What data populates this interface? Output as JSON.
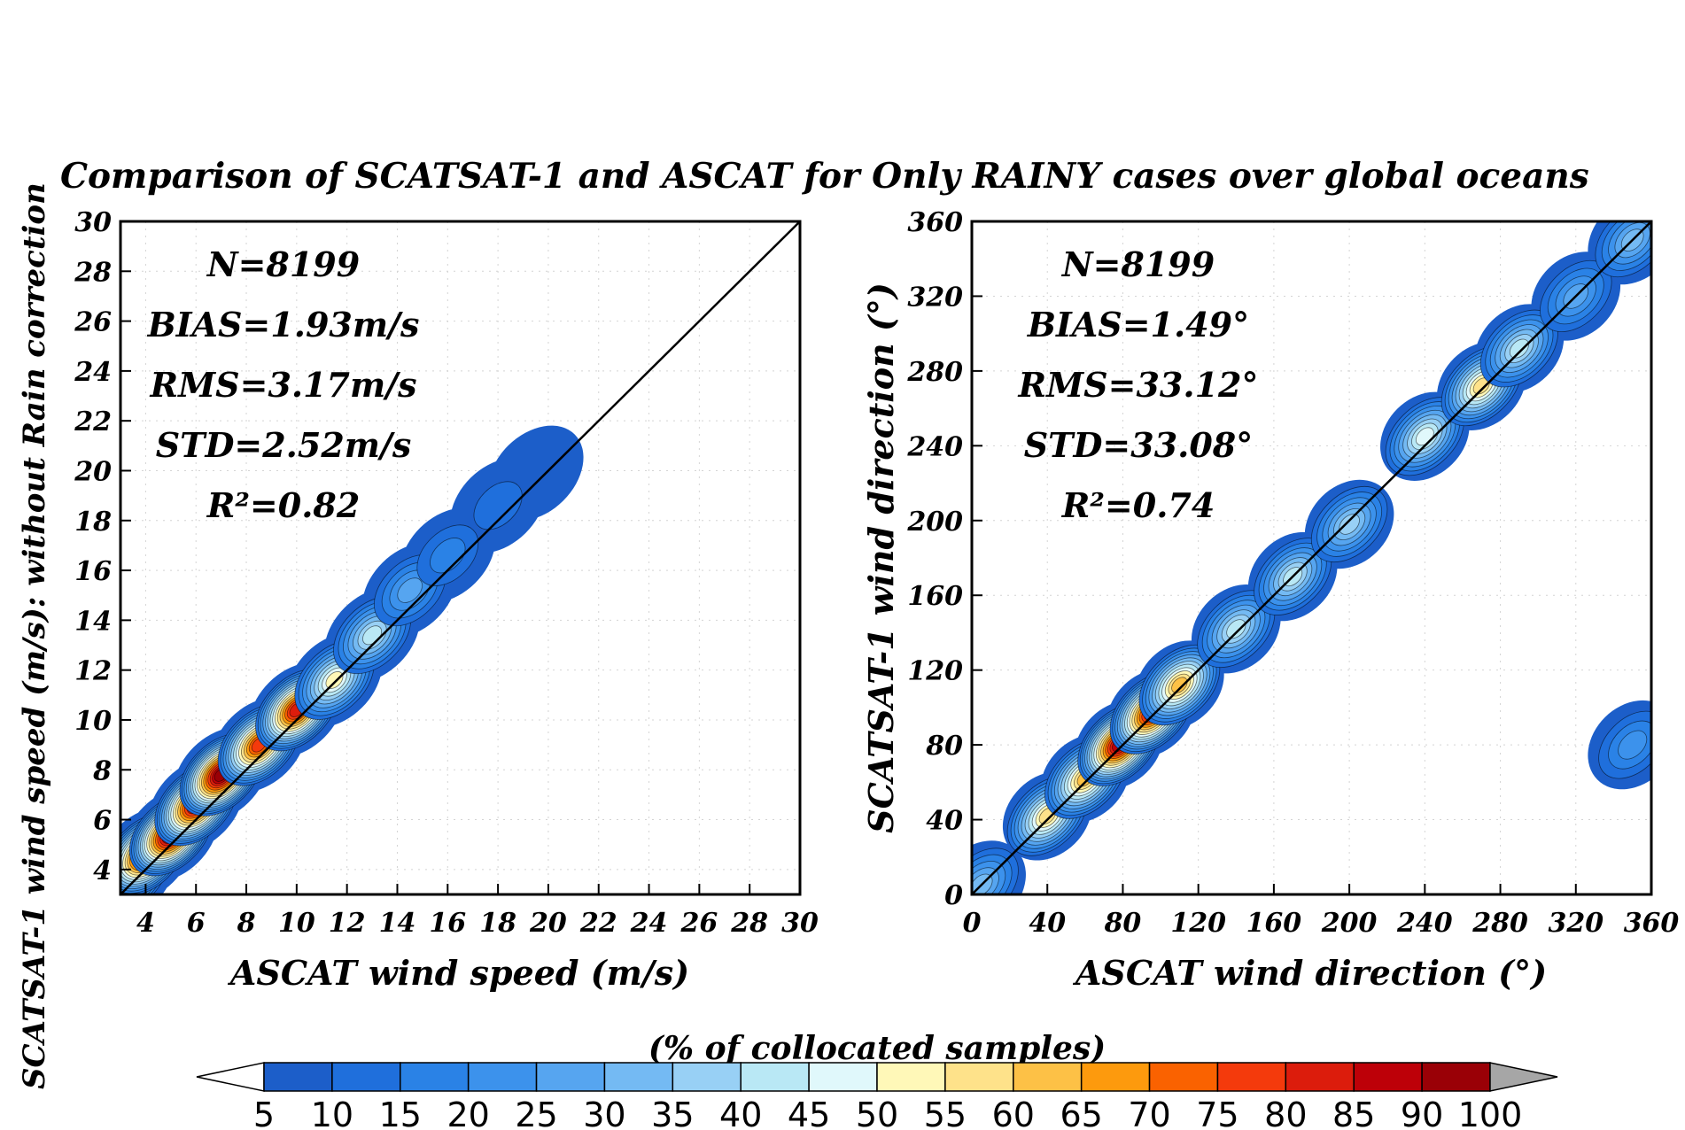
{
  "figure": {
    "title": "Comparison of SCATSAT-1 and ASCAT for Only RAINY cases over global oceans",
    "left_margin_label": "SCATSAT-1 wind speed (m/s): without Rain correction",
    "colorbar_label": "(% of collocated samples)"
  },
  "chart_data": [
    {
      "type": "heatmap",
      "subtype": "2D density contour (filled)",
      "xlabel": "ASCAT wind speed (m/s)",
      "ylabel": "",
      "xlim": [
        3,
        30
      ],
      "ylim": [
        3,
        30
      ],
      "x_ticks": [
        4,
        6,
        8,
        10,
        12,
        14,
        16,
        18,
        20,
        22,
        24,
        26,
        28,
        30
      ],
      "y_ticks": [
        4,
        6,
        8,
        10,
        12,
        14,
        16,
        18,
        20,
        22,
        24,
        26,
        28,
        30
      ],
      "grid": true,
      "reference_line": "1:1",
      "stats": [
        "N=8199",
        "BIAS=1.93m/s",
        "RMS=3.17m/s",
        "STD=2.52m/s",
        "R²=0.82"
      ],
      "density_ridge": [
        {
          "x": 3.3,
          "y": 3.8,
          "level": 75
        },
        {
          "x": 4.0,
          "y": 4.6,
          "level": 85
        },
        {
          "x": 5.0,
          "y": 5.4,
          "level": 90
        },
        {
          "x": 6.0,
          "y": 6.6,
          "level": 85
        },
        {
          "x": 7.0,
          "y": 7.8,
          "level": 90
        },
        {
          "x": 8.5,
          "y": 9.0,
          "level": 75
        },
        {
          "x": 10.0,
          "y": 10.4,
          "level": 80
        },
        {
          "x": 11.5,
          "y": 11.6,
          "level": 50
        },
        {
          "x": 13.0,
          "y": 13.4,
          "level": 40
        },
        {
          "x": 14.5,
          "y": 15.2,
          "level": 25
        },
        {
          "x": 16.0,
          "y": 16.6,
          "level": 15
        },
        {
          "x": 18.0,
          "y": 18.6,
          "level": 10
        },
        {
          "x": 19.5,
          "y": 19.9,
          "level": 5
        }
      ]
    },
    {
      "type": "heatmap",
      "subtype": "2D density contour (filled)",
      "xlabel": "ASCAT wind direction (°)",
      "ylabel": "SCATSAT-1 wind direction (°)",
      "xlim": [
        0,
        360
      ],
      "ylim": [
        0,
        360
      ],
      "x_ticks": [
        0,
        40,
        80,
        120,
        160,
        200,
        240,
        280,
        320,
        360
      ],
      "y_ticks": [
        0,
        40,
        80,
        120,
        160,
        200,
        240,
        280,
        320,
        360
      ],
      "grid": true,
      "reference_line": "1:1",
      "stats": [
        "N=8199",
        "BIAS=1.49°",
        "RMS=33.12°",
        "STD=33.08°",
        "R²=0.74"
      ],
      "density_ridge": [
        {
          "x": 5,
          "y": 5,
          "level": 30
        },
        {
          "x": 40,
          "y": 42,
          "level": 55
        },
        {
          "x": 60,
          "y": 62,
          "level": 60
        },
        {
          "x": 78,
          "y": 80,
          "level": 85
        },
        {
          "x": 95,
          "y": 97,
          "level": 80
        },
        {
          "x": 110,
          "y": 112,
          "level": 60
        },
        {
          "x": 140,
          "y": 142,
          "level": 40
        },
        {
          "x": 170,
          "y": 170,
          "level": 40
        },
        {
          "x": 200,
          "y": 198,
          "level": 35
        },
        {
          "x": 240,
          "y": 245,
          "level": 45
        },
        {
          "x": 270,
          "y": 272,
          "level": 55
        },
        {
          "x": 290,
          "y": 292,
          "level": 40
        },
        {
          "x": 320,
          "y": 320,
          "level": 25
        },
        {
          "x": 350,
          "y": 350,
          "level": 30
        },
        {
          "x": 350,
          "y": 80,
          "level": 20
        }
      ]
    }
  ],
  "colorbar": {
    "ticks": [
      "5",
      "10",
      "15",
      "20",
      "25",
      "30",
      "35",
      "40",
      "45",
      "50",
      "55",
      "60",
      "65",
      "70",
      "75",
      "80",
      "85",
      "90",
      "100"
    ],
    "colors": [
      "#1c5ec9",
      "#1f6fdc",
      "#2a82e6",
      "#3c92ec",
      "#56a5f0",
      "#74baf3",
      "#98d0f5",
      "#b9e8f5",
      "#e0f8fb",
      "#fff8b8",
      "#fee28a",
      "#fdc146",
      "#fd9a0d",
      "#fa6200",
      "#f43a0c",
      "#dc1c0c",
      "#bd0008",
      "#9a0006"
    ],
    "under_color": "#ffffff",
    "over_color": "#a6a6a6"
  }
}
